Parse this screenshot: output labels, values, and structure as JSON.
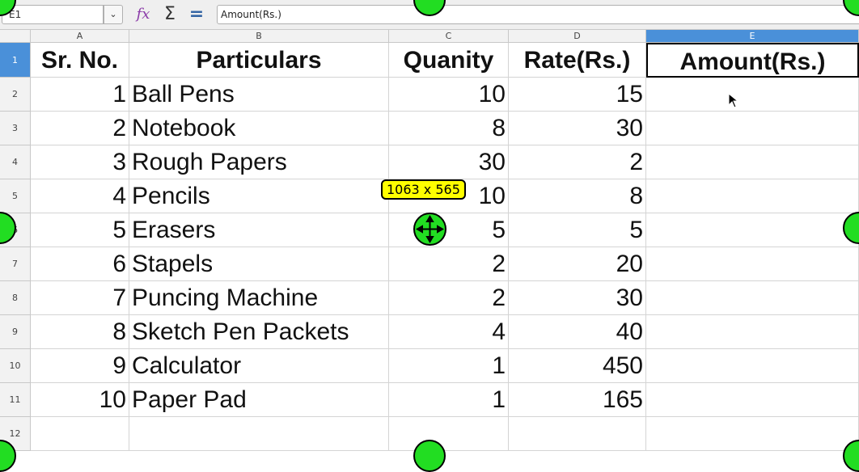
{
  "toolbar": {
    "name_box": "E1",
    "name_box_dropdown_icon": "chevron-down-icon",
    "function_wizard_icon": "fx-icon",
    "sum_icon": "Σ",
    "equals_icon": "=",
    "formula": "Amount(Rs.)"
  },
  "columns": [
    "A",
    "B",
    "C",
    "D",
    "E"
  ],
  "rows": [
    "1",
    "2",
    "3",
    "4",
    "5",
    "6",
    "7",
    "8",
    "9",
    "10",
    "11",
    "12"
  ],
  "header": [
    "Sr. No.",
    "Particulars",
    "Quanity",
    "Rate(Rs.)",
    "Amount(Rs.)"
  ],
  "data": [
    [
      "1",
      "Ball Pens",
      "10",
      "15",
      ""
    ],
    [
      "2",
      "Notebook",
      "8",
      "30",
      ""
    ],
    [
      "3",
      "Rough Papers",
      "30",
      "2",
      ""
    ],
    [
      "4",
      "Pencils",
      "10",
      "8",
      ""
    ],
    [
      "5",
      "Erasers",
      "5",
      "5",
      ""
    ],
    [
      "6",
      "Stapels",
      "2",
      "20",
      ""
    ],
    [
      "7",
      "Puncing Machine",
      "2",
      "30",
      ""
    ],
    [
      "8",
      "Sketch Pen Packets",
      "4",
      "40",
      ""
    ],
    [
      "9",
      "Calculator",
      "1",
      "450",
      ""
    ],
    [
      "10",
      "Paper Pad",
      "1",
      "165",
      ""
    ]
  ],
  "overlay": {
    "size_tooltip": "1063 x 565",
    "handle_color": "#22dd22",
    "selection_color": "#4a90d9"
  }
}
